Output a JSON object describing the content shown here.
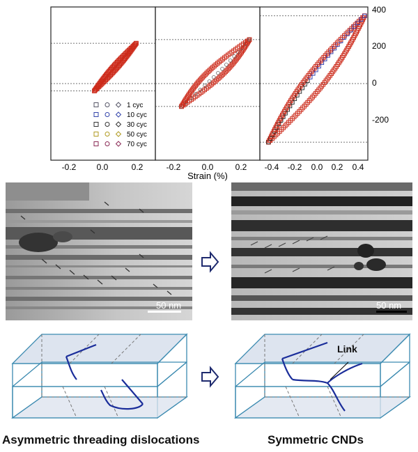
{
  "plots": {
    "xlabel": "Strain (%)",
    "right_yticks": [
      "400",
      "200",
      "0",
      "-200"
    ],
    "panels": [
      {
        "xticks": [
          "-0.2",
          "0.0",
          "0.2"
        ]
      },
      {
        "xticks": [
          "-0.2",
          "0.0",
          "0.2"
        ]
      },
      {
        "xticks": [
          "-0.4",
          "-0.2",
          "0.0",
          "0.2",
          "0.4"
        ]
      }
    ],
    "legend": [
      {
        "label": "1 cyc",
        "color": "#555566"
      },
      {
        "label": "10 cyc",
        "color": "#3344aa"
      },
      {
        "label": "30 cyc",
        "color": "#333333"
      },
      {
        "label": "50 cyc",
        "color": "#b09a20"
      },
      {
        "label": "70 cyc",
        "color": "#8a2a55"
      }
    ],
    "colors": {
      "loop_red": "#cc2a1a",
      "loop_blue": "#2233aa",
      "loop_black": "#222222"
    }
  },
  "chart_data": [
    {
      "type": "scatter",
      "xlabel": "Strain (%)",
      "xlim": [
        -0.3,
        0.3
      ],
      "ylim": [
        -390,
        420
      ],
      "series": [
        {
          "name": "70 cyc",
          "x": [
            -0.05,
            0.19
          ],
          "y": [
            -40,
            220
          ]
        }
      ]
    },
    {
      "type": "scatter",
      "xlabel": "Strain (%)",
      "xlim": [
        -0.3,
        0.3
      ],
      "ylim": [
        -390,
        420
      ],
      "series": [
        {
          "name": "70 cyc",
          "x": [
            -0.15,
            0.24
          ],
          "y": [
            -125,
            240
          ]
        }
      ]
    },
    {
      "type": "scatter",
      "xlabel": "Strain (%)",
      "xlim": [
        -0.5,
        0.5
      ],
      "ylim": [
        -390,
        420
      ],
      "yticks": [
        400,
        200,
        0,
        -200
      ],
      "series": [
        {
          "name": "70 cyc",
          "x": [
            -0.42,
            0.47
          ],
          "y": [
            -320,
            370
          ]
        }
      ]
    }
  ],
  "tem": {
    "left_scale": "50 nm",
    "right_scale": "50 nm"
  },
  "diagram": {
    "link_label": "Link"
  },
  "captions": {
    "left": "Asymmetric threading dislocations",
    "right": "Symmetric CNDs"
  }
}
